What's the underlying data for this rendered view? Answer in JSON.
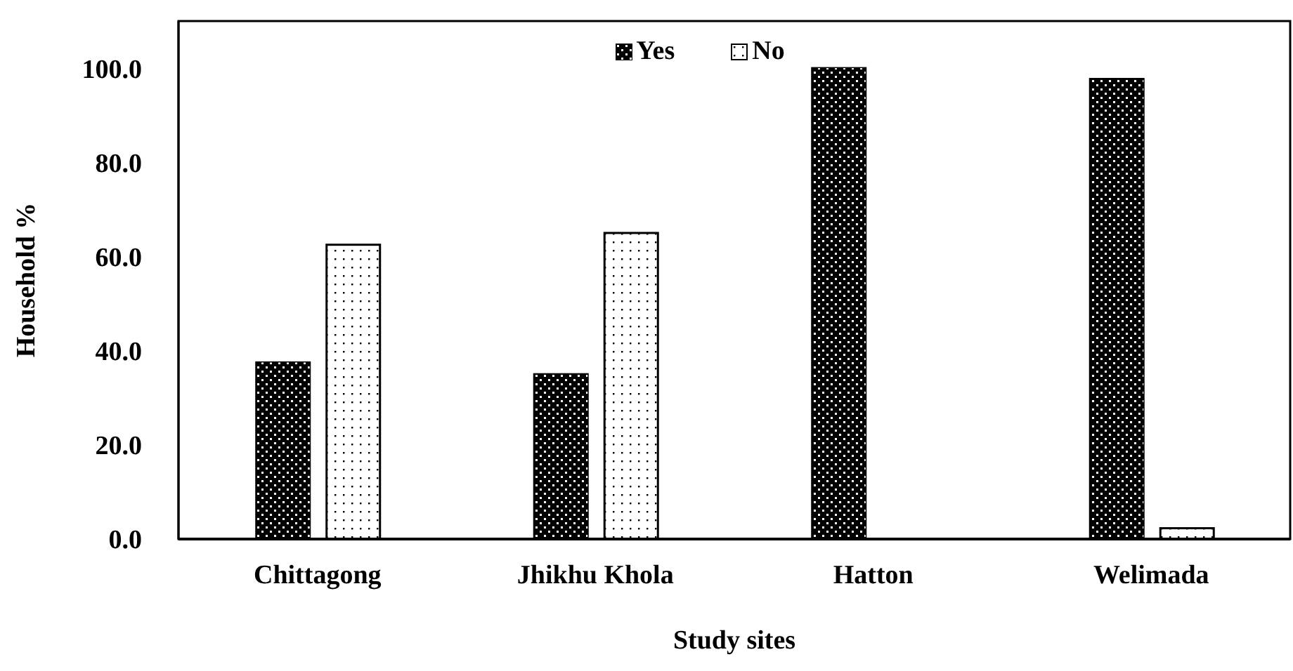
{
  "chart_data": {
    "type": "bar",
    "xlabel": "Study sites",
    "ylabel": "Household %",
    "categories": [
      "Chittagong",
      "Jhikhu Khola",
      "Hatton",
      "Welimada"
    ],
    "series": [
      {
        "name": "Yes",
        "color": "#000000",
        "values": [
          37.5,
          35.0,
          100.0,
          97.7
        ]
      },
      {
        "name": "No",
        "color": "#ffffff",
        "values": [
          62.5,
          65.0,
          0.0,
          2.3
        ]
      }
    ],
    "ylim": [
      0,
      110
    ],
    "yticks": [
      {
        "value": 0,
        "label": "0.0"
      },
      {
        "value": 20,
        "label": "20.0"
      },
      {
        "value": 40,
        "label": "40.0"
      },
      {
        "value": 60,
        "label": "60.0"
      },
      {
        "value": 80,
        "label": "80.0"
      },
      {
        "value": 100,
        "label": "100.0"
      }
    ],
    "grid": false,
    "legend": "top"
  }
}
